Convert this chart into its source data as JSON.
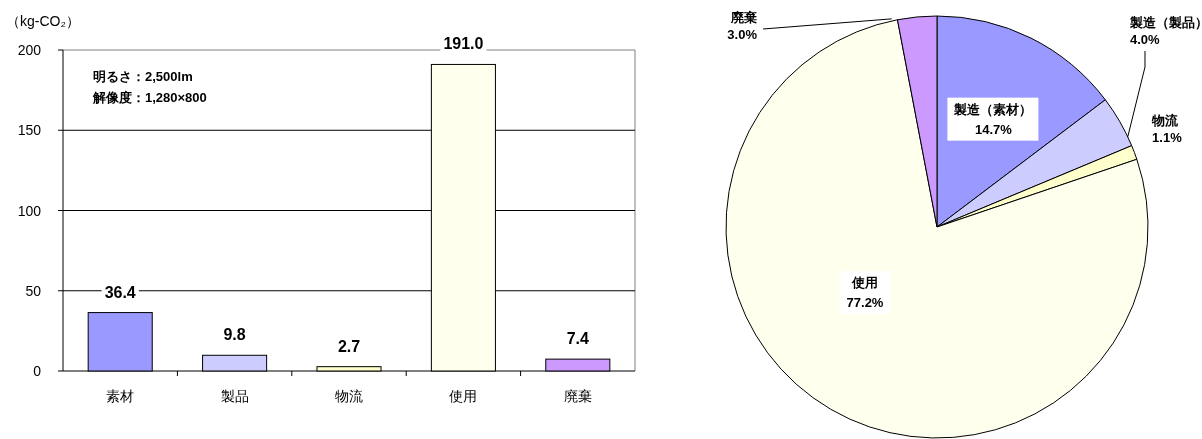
{
  "chart_data": [
    {
      "type": "bar",
      "ylabel": "（kg-CO₂）",
      "categories": [
        "素材",
        "製品",
        "物流",
        "使用",
        "廃棄"
      ],
      "values": [
        36.4,
        9.8,
        2.7,
        191.0,
        7.4
      ],
      "colors": [
        "#9999ff",
        "#ccccff",
        "#ffffcc",
        "#ffffee",
        "#cc99ff"
      ],
      "ylim": [
        0,
        200
      ],
      "yticks": [
        0,
        50,
        100,
        150,
        200
      ],
      "grid": "y",
      "value_labels": [
        "36.4",
        "9.8",
        "2.7",
        "191.0",
        "7.4"
      ],
      "annotations": [
        "明るさ：2,500lm",
        "解像度：1,280×800"
      ]
    },
    {
      "type": "pie",
      "categories": [
        "製造（素材）",
        "製造（製品）",
        "物流",
        "使用",
        "廃棄"
      ],
      "values": [
        14.7,
        4.0,
        1.1,
        77.2,
        3.0
      ],
      "colors": [
        "#9999ff",
        "#ccccff",
        "#ffffcc",
        "#ffffee",
        "#cc99ff"
      ],
      "value_labels": [
        "14.7%",
        "4.0%",
        "1.1%",
        "77.2%",
        "3.0%"
      ]
    }
  ]
}
